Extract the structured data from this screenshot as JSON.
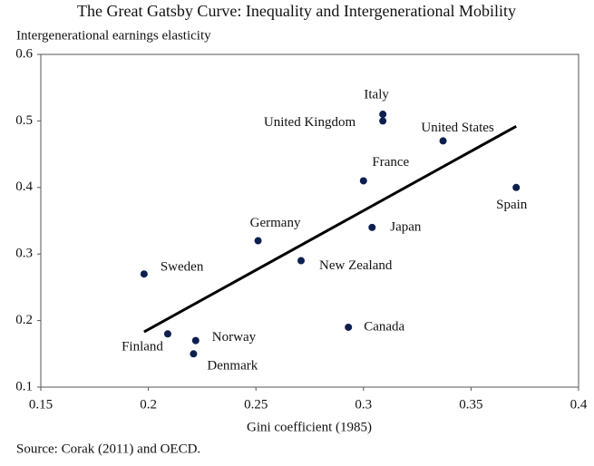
{
  "chart_data": {
    "type": "scatter",
    "title": "The Great Gatsby Curve: Inequality and Intergenerational Mobility",
    "y_label": "Intergenerational earnings elasticity",
    "x_label": "Gini coefficient (1985)",
    "source": "Source: Corak (2011) and OECD.",
    "labels": [
      "Sweden",
      "Finland",
      "Norway",
      "Denmark",
      "Germany",
      "New Zealand",
      "Canada",
      "France",
      "Japan",
      "Italy",
      "United Kingdom",
      "United States",
      "Spain"
    ],
    "x": [
      0.198,
      0.209,
      0.222,
      0.221,
      0.251,
      0.271,
      0.293,
      0.3,
      0.304,
      0.309,
      0.309,
      0.337,
      0.371
    ],
    "values": [
      0.27,
      0.18,
      0.17,
      0.15,
      0.32,
      0.29,
      0.19,
      0.41,
      0.34,
      0.51,
      0.5,
      0.47,
      0.4
    ],
    "color": "#0d1f4f",
    "trend_line": {
      "x": [
        0.198,
        0.371
      ],
      "y": [
        0.183,
        0.492
      ],
      "color": "#000000"
    },
    "xlim": [
      0.15,
      0.4
    ],
    "xticks": [
      0.15,
      0.2,
      0.25,
      0.3,
      0.35,
      0.4
    ],
    "ylim": [
      0.1,
      0.6
    ],
    "yticks": [
      0.1,
      0.2,
      0.3,
      0.4,
      0.5,
      0.6
    ]
  }
}
